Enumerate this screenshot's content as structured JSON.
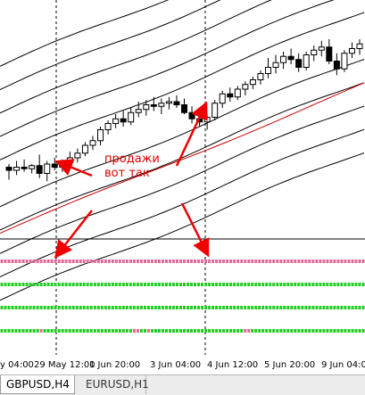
{
  "chart_data": {
    "type": "candlestick",
    "symbol": "GBPUSD",
    "timeframe": "H4",
    "x_tick_labels": [
      "y 04:00",
      "29 May 12:00",
      "1 Jun 20:00",
      "3 Jun 04:00",
      "4 Jun 12:00",
      "5 Jun 20:00",
      "9 Jun 04:00"
    ],
    "candles": [
      [
        0.1,
        0.12,
        0.02,
        0.08
      ],
      [
        0.08,
        0.14,
        0.05,
        0.1
      ],
      [
        0.1,
        0.15,
        0.07,
        0.09
      ],
      [
        0.09,
        0.12,
        0.06,
        0.11
      ],
      [
        0.11,
        0.18,
        0.03,
        0.06
      ],
      [
        0.06,
        0.14,
        0.01,
        0.12
      ],
      [
        0.12,
        0.16,
        0.08,
        0.1
      ],
      [
        0.1,
        0.15,
        0.07,
        0.13
      ],
      [
        0.13,
        0.2,
        0.1,
        0.16
      ],
      [
        0.16,
        0.22,
        0.13,
        0.19
      ],
      [
        0.19,
        0.26,
        0.17,
        0.24
      ],
      [
        0.24,
        0.3,
        0.21,
        0.27
      ],
      [
        0.27,
        0.36,
        0.24,
        0.34
      ],
      [
        0.34,
        0.4,
        0.31,
        0.38
      ],
      [
        0.38,
        0.44,
        0.35,
        0.41
      ],
      [
        0.41,
        0.46,
        0.36,
        0.39
      ],
      [
        0.39,
        0.48,
        0.37,
        0.45
      ],
      [
        0.45,
        0.52,
        0.42,
        0.47
      ],
      [
        0.47,
        0.53,
        0.43,
        0.5
      ],
      [
        0.5,
        0.55,
        0.46,
        0.49
      ],
      [
        0.49,
        0.54,
        0.44,
        0.51
      ],
      [
        0.51,
        0.55,
        0.47,
        0.52
      ],
      [
        0.52,
        0.56,
        0.48,
        0.5
      ],
      [
        0.5,
        0.54,
        0.44,
        0.45
      ],
      [
        0.45,
        0.49,
        0.38,
        0.41
      ],
      [
        0.41,
        0.45,
        0.36,
        0.39
      ],
      [
        0.39,
        0.44,
        0.34,
        0.42
      ],
      [
        0.42,
        0.53,
        0.4,
        0.51
      ],
      [
        0.51,
        0.59,
        0.48,
        0.57
      ],
      [
        0.57,
        0.61,
        0.52,
        0.55
      ],
      [
        0.55,
        0.62,
        0.53,
        0.6
      ],
      [
        0.6,
        0.65,
        0.56,
        0.63
      ],
      [
        0.63,
        0.68,
        0.6,
        0.66
      ],
      [
        0.66,
        0.72,
        0.63,
        0.7
      ],
      [
        0.7,
        0.8,
        0.67,
        0.74
      ],
      [
        0.74,
        0.82,
        0.7,
        0.77
      ],
      [
        0.77,
        0.84,
        0.73,
        0.81
      ],
      [
        0.81,
        0.86,
        0.76,
        0.79
      ],
      [
        0.79,
        0.83,
        0.71,
        0.74
      ],
      [
        0.74,
        0.84,
        0.72,
        0.82
      ],
      [
        0.82,
        0.88,
        0.78,
        0.85
      ],
      [
        0.85,
        0.91,
        0.81,
        0.87
      ],
      [
        0.87,
        0.92,
        0.76,
        0.78
      ],
      [
        0.78,
        0.83,
        0.69,
        0.73
      ],
      [
        0.73,
        0.85,
        0.71,
        0.83
      ],
      [
        0.83,
        0.9,
        0.8,
        0.86
      ],
      [
        0.86,
        0.92,
        0.82,
        0.89
      ]
    ],
    "envelope_offsets": [
      -0.75,
      -0.6,
      -0.45,
      -0.3,
      -0.15,
      0.15,
      0.3,
      0.45,
      0.6,
      0.75
    ],
    "dots_rows": [
      {
        "colors": [
          "pink"
        ]
      },
      {
        "colors": [
          "green"
        ]
      },
      {
        "colors": [
          "green"
        ]
      },
      {
        "colors": [
          "green",
          "green",
          "green",
          "green",
          "green",
          "green",
          "green",
          "green",
          "green",
          "green",
          "green",
          "pink",
          "green",
          "green",
          "green",
          "green",
          "green",
          "green",
          "green",
          "green",
          "green",
          "green",
          "green",
          "green",
          "green",
          "green",
          "green",
          "green",
          "green",
          "green",
          "green",
          "green",
          "green",
          "green",
          "green",
          "green",
          "green",
          "pink",
          "pink",
          "green",
          "green",
          "pink",
          "green",
          "green",
          "green",
          "green",
          "green",
          "green",
          "green",
          "green",
          "green",
          "green",
          "green",
          "green",
          "green",
          "green",
          "green",
          "green",
          "green",
          "green",
          "green",
          "green",
          "green",
          "green",
          "green",
          "green",
          "green",
          "green",
          "pink",
          "pink",
          "green",
          "green",
          "green",
          "green",
          "green",
          "green",
          "green",
          "green",
          "green",
          "green",
          "green",
          "green",
          "green",
          "green",
          "green",
          "green",
          "green",
          "green",
          "green",
          "green",
          "green",
          "green",
          "green",
          "green",
          "green",
          "green",
          "green",
          "green",
          "green",
          "green"
        ]
      }
    ]
  },
  "annotation": {
    "line1": "продажи",
    "line2": "вот так"
  },
  "colors": {
    "up_candle": "#ffffff",
    "down_candle": "#000000",
    "envelope": "#000000",
    "ma": "#cc0000",
    "arrow": "#ee0000",
    "dot_green": "#22cc22",
    "dot_pink": "#e06a9a"
  },
  "tabs": [
    {
      "label": "GBPUSD,H4",
      "active": true
    },
    {
      "label": "EURUSD,H1",
      "active": false
    }
  ]
}
